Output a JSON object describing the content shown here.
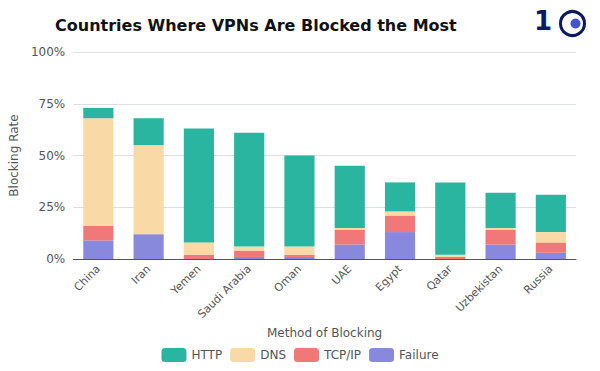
{
  "chart_data": {
    "type": "bar",
    "title": "Countries Where VPNs Are Blocked the Most",
    "xlabel": "Method of Blocking",
    "ylabel": "Blocking Rate",
    "categories": [
      "China",
      "Iran",
      "Yemen",
      "Saudi Arabia",
      "Oman",
      "UAE",
      "Egypt",
      "Qatar",
      "Uzbekistan",
      "Russia"
    ],
    "series": [
      {
        "name": "HTTP",
        "color": "#2ab5a0",
        "values": [
          0.05,
          0.13,
          0.55,
          0.55,
          0.44,
          0.3,
          0.14,
          0.35,
          0.17,
          0.18
        ]
      },
      {
        "name": "DNS",
        "color": "#f9d9a6",
        "values": [
          0.52,
          0.43,
          0.06,
          0.02,
          0.04,
          0.01,
          0.02,
          0.01,
          0.01,
          0.05
        ]
      },
      {
        "name": "TCP/IP",
        "color": "#f07878",
        "values": [
          0.07,
          0.0,
          0.02,
          0.03,
          0.01,
          0.07,
          0.08,
          0.01,
          0.07,
          0.05
        ]
      },
      {
        "name": "Failure",
        "color": "#8888dd",
        "values": [
          0.09,
          0.12,
          0.0,
          0.01,
          0.01,
          0.07,
          0.13,
          0.0,
          0.07,
          0.03
        ]
      }
    ],
    "stacked": true,
    "ylim": [
      0,
      1.0
    ],
    "yticks": [
      {
        "value": 0,
        "label": "0%"
      },
      {
        "value": 0.25,
        "label": "25%"
      },
      {
        "value": 0.5,
        "label": "50%"
      },
      {
        "value": 0.75,
        "label": "75%"
      },
      {
        "value": 1.0,
        "label": "100%"
      }
    ],
    "grid": true,
    "legend": "bottom",
    "annotations": [
      "1"
    ]
  }
}
